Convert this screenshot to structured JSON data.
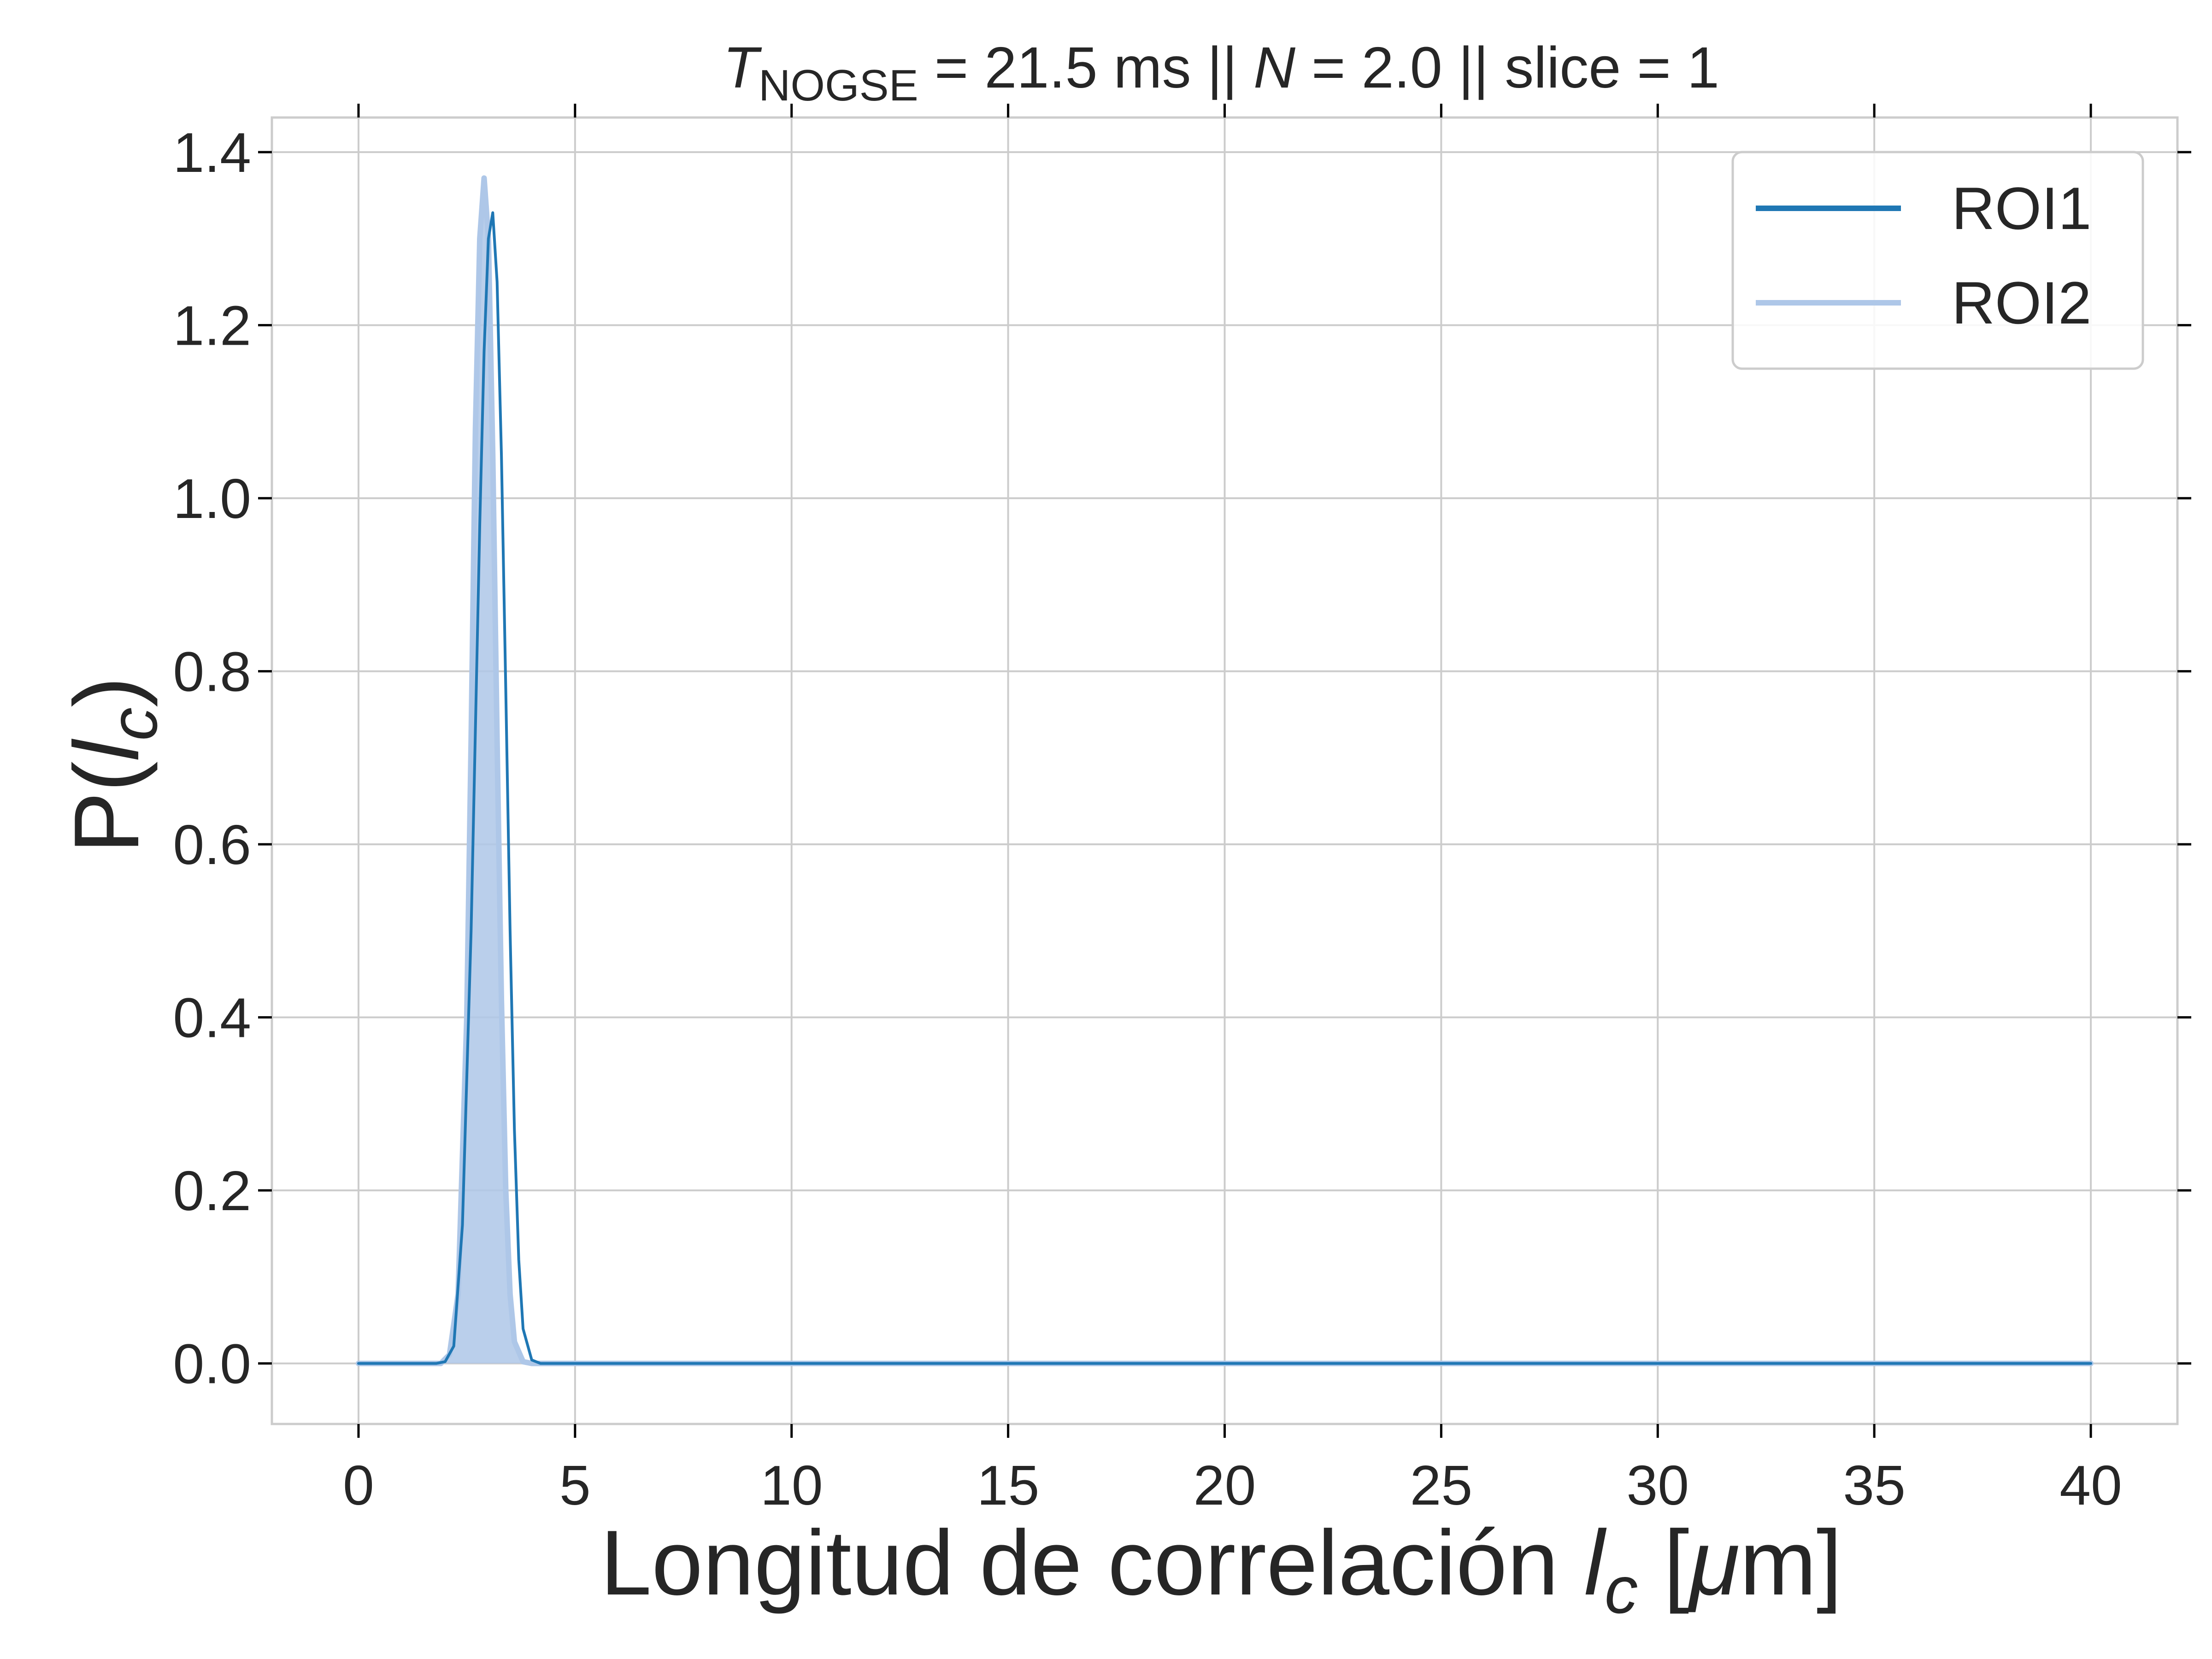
{
  "chart_data": {
    "type": "line",
    "title": {
      "t_symbol": "T",
      "t_subscript": "NOGSE",
      "t_value": " = 21.5 ms  ||  ",
      "n_symbol": "N",
      "rest": " = 2.0 || slice = 1"
    },
    "xlabel": {
      "text": "Longitud de correlación ",
      "symbol": "l",
      "subscript": "c",
      "unit_open": " [",
      "mu": "μ",
      "unit_close": "m]"
    },
    "ylabel": {
      "prefix": "P(",
      "symbol": "l",
      "subscript": "c",
      "suffix": ")"
    },
    "xlim": [
      -2,
      42
    ],
    "ylim": [
      -0.07,
      1.44
    ],
    "xticks": [
      0,
      5,
      10,
      15,
      20,
      25,
      30,
      35,
      40
    ],
    "yticks": [
      0.0,
      0.2,
      0.4,
      0.6,
      0.8,
      1.0,
      1.2,
      1.4
    ],
    "ytick_labels": [
      "0.0",
      "0.2",
      "0.4",
      "0.6",
      "0.8",
      "1.0",
      "1.2",
      "1.4"
    ],
    "grid": true,
    "legend_position": "top-right",
    "series": [
      {
        "name": "ROI1",
        "color": "#1f77b4",
        "filled": false,
        "x": [
          0,
          1.8,
          2.0,
          2.2,
          2.4,
          2.6,
          2.8,
          2.9,
          3.0,
          3.1,
          3.2,
          3.3,
          3.4,
          3.5,
          3.6,
          3.7,
          3.8,
          4.0,
          4.2,
          5,
          10,
          20,
          30,
          40
        ],
        "y": [
          0,
          0,
          0.002,
          0.02,
          0.16,
          0.5,
          0.97,
          1.17,
          1.3,
          1.33,
          1.25,
          1.05,
          0.78,
          0.5,
          0.27,
          0.12,
          0.04,
          0.004,
          0,
          0,
          0,
          0,
          0,
          0
        ]
      },
      {
        "name": "ROI2",
        "color": "#aec7e8",
        "filled": true,
        "x": [
          0,
          1.9,
          2.1,
          2.3,
          2.5,
          2.6,
          2.7,
          2.8,
          2.9,
          3.0,
          3.1,
          3.2,
          3.3,
          3.4,
          3.5,
          3.6,
          3.8,
          4.0,
          5,
          10,
          20,
          30,
          40
        ],
        "y": [
          0,
          0,
          0.01,
          0.08,
          0.4,
          0.72,
          1.08,
          1.3,
          1.37,
          1.3,
          1.05,
          0.72,
          0.42,
          0.2,
          0.08,
          0.025,
          0.002,
          0,
          0,
          0,
          0,
          0,
          0
        ]
      }
    ]
  }
}
